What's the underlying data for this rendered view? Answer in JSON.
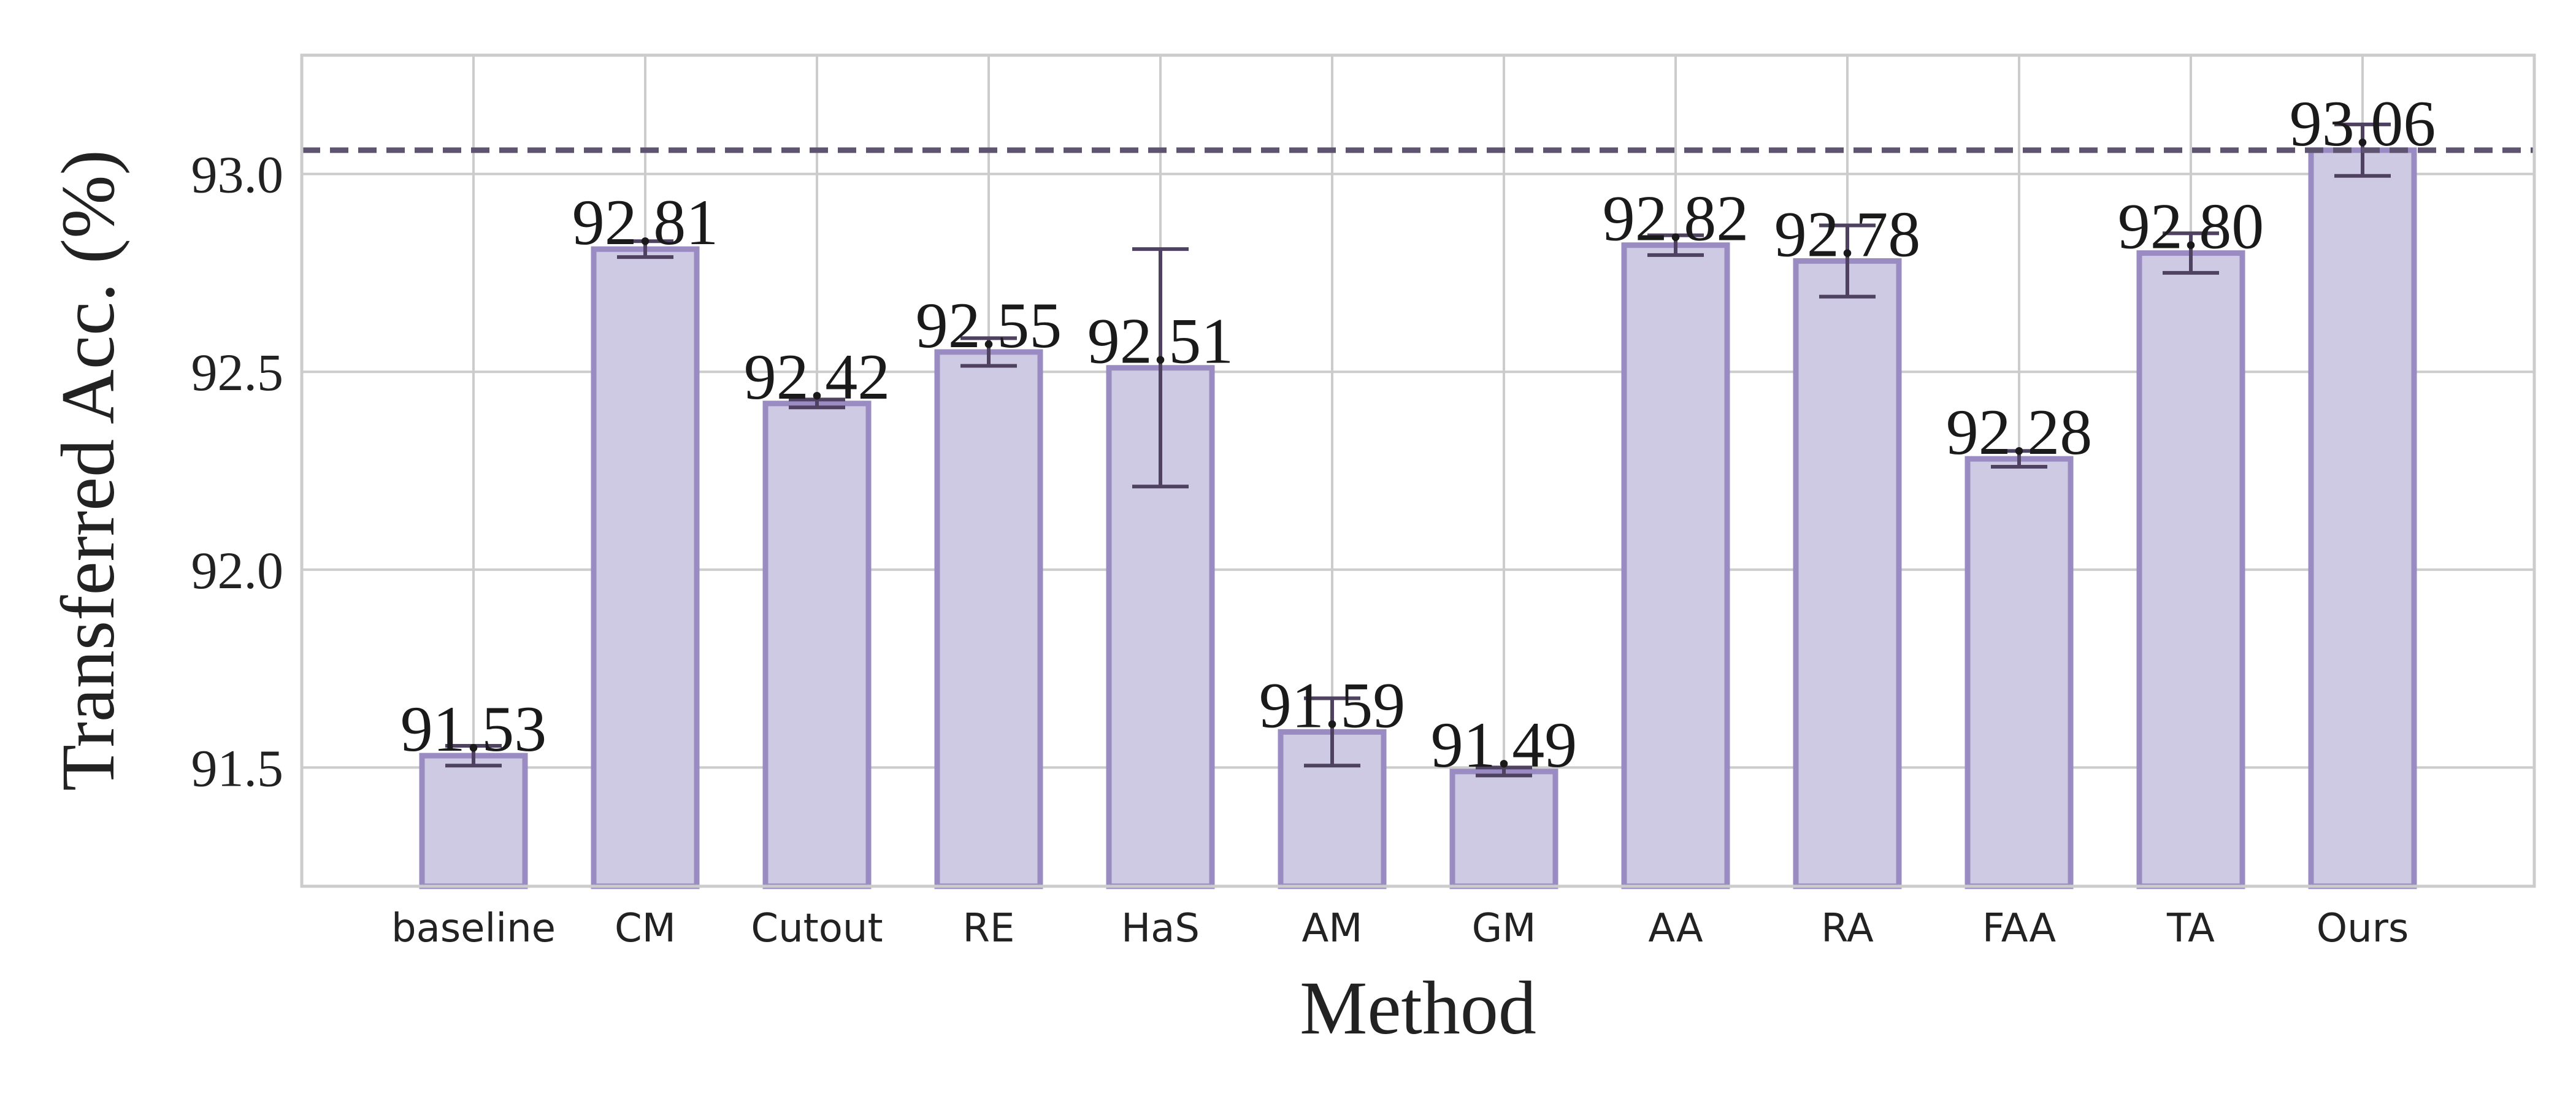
{
  "chart_data": {
    "type": "bar",
    "title": "",
    "xlabel": "Method",
    "ylabel": "Transferred Acc. (%)",
    "categories": [
      "baseline",
      "CM",
      "Cutout",
      "RE",
      "HaS",
      "AM",
      "GM",
      "AA",
      "RA",
      "FAA",
      "TA",
      "Ours"
    ],
    "values": [
      91.53,
      92.81,
      92.42,
      92.55,
      92.51,
      91.59,
      91.49,
      92.82,
      92.78,
      92.28,
      92.8,
      93.06
    ],
    "value_labels": [
      "91.53",
      "92.81",
      "92.42",
      "92.55",
      "92.51",
      "91.59",
      "91.49",
      "92.82",
      "92.78",
      "92.28",
      "92.80",
      "93.06"
    ],
    "error": [
      0.025,
      0.02,
      0.01,
      0.035,
      0.3,
      0.085,
      0.01,
      0.025,
      0.09,
      0.02,
      0.05,
      0.065
    ],
    "reference_line": 93.06,
    "ylim": [
      91.2,
      93.3
    ],
    "yticks": [
      91.5,
      92.0,
      92.5,
      93.0
    ],
    "ytick_labels": [
      "91.5",
      "92.0",
      "92.5",
      "93.0"
    ],
    "grid": true,
    "colors": {
      "bar_fill": "#cecae4",
      "bar_edge": "#9a8cc2",
      "error_bar": "#4f4260",
      "reference_line": "#5e5470",
      "grid": "#cccccc",
      "frame": "#cccccc"
    }
  }
}
